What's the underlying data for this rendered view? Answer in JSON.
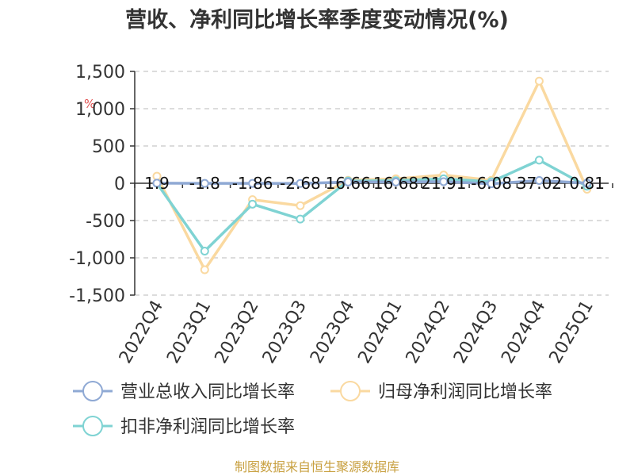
{
  "chart_data": {
    "type": "line",
    "title": "营收、净利同比增长率季度变动情况(%)",
    "categories": [
      "2022Q4",
      "2023Q1",
      "2023Q2",
      "2023Q3",
      "2023Q4",
      "2024Q1",
      "2024Q2",
      "2024Q3",
      "2024Q4",
      "2025Q1"
    ],
    "ylim": [
      -1500,
      1500
    ],
    "yticks": [
      -1500,
      -1000,
      -500,
      0,
      500,
      1000,
      1500
    ],
    "ytick_labels": [
      "-1,500",
      "-1,000",
      "-500",
      "0",
      "500",
      "1,000",
      "1,500"
    ],
    "grid": "horizontal dashed",
    "legend_position": "bottom-left",
    "series": [
      {
        "name": "营业总收入同比增长率",
        "color": "#8fa9d4",
        "values": [
          1.9,
          -1.8,
          -1.86,
          -2.68,
          16.66,
          16.68,
          21.91,
          -6.08,
          37.02,
          0.81
        ],
        "labels": [
          "1.9",
          "-1.8",
          "-1.86",
          "-2.68",
          "16.66",
          "16.68",
          "21.91",
          "-6.08",
          "37.02",
          "0.81"
        ]
      },
      {
        "name": "归母净利润同比增长率",
        "color": "#fad9a0",
        "values": [
          95,
          -1160,
          -220,
          -300,
          40,
          60,
          110,
          40,
          1370,
          -80
        ]
      },
      {
        "name": "扣非净利润同比增长率",
        "color": "#7fd3d3",
        "values": [
          0,
          -910,
          -280,
          -480,
          30,
          35,
          60,
          20,
          310,
          -40
        ]
      }
    ]
  },
  "stray_text": "%",
  "source": "制图数据来自恒生聚源数据库"
}
